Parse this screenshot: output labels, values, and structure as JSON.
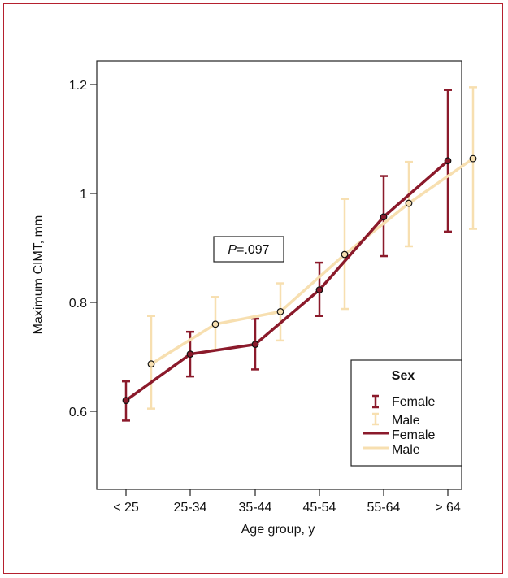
{
  "colors": {
    "female": "#8b1a2b",
    "male": "#f7dfb0",
    "frame": "#b5202e",
    "axis": "#222222"
  },
  "chart_data": {
    "type": "line",
    "xlabel": "Age group, y",
    "ylabel": "Maximum CIMT, mm",
    "categories": [
      "< 25",
      "25-34",
      "35-44",
      "45-54",
      "55-64",
      "> 64"
    ],
    "ylim": [
      0.45,
      1.24
    ],
    "yticks": [
      0.6,
      0.8,
      1,
      1.2
    ],
    "ytick_labels": [
      "0.6",
      "0.8",
      "1",
      "1.2"
    ],
    "error_bars": true,
    "grid": false,
    "annotation": {
      "prefix": "P",
      "value": "=.097"
    },
    "legend": {
      "title": "Sex",
      "position": "bottom-right",
      "entries": [
        "Female",
        "Male",
        "Female",
        "Male"
      ]
    },
    "series": [
      {
        "name": "Female",
        "color": "#8b1a2b",
        "values": [
          0.62,
          0.705,
          0.723,
          0.823,
          0.957,
          1.06
        ],
        "lower": [
          0.583,
          0.664,
          0.677,
          0.775,
          0.885,
          0.93
        ],
        "upper": [
          0.655,
          0.746,
          0.77,
          0.873,
          1.032,
          1.19
        ]
      },
      {
        "name": "Male",
        "color": "#f7dfb0",
        "values": [
          0.687,
          0.76,
          0.783,
          0.888,
          0.982,
          1.064
        ],
        "lower": [
          0.605,
          0.713,
          0.73,
          0.788,
          0.903,
          0.935
        ],
        "upper": [
          0.775,
          0.81,
          0.835,
          0.99,
          1.058,
          1.195
        ]
      }
    ]
  }
}
